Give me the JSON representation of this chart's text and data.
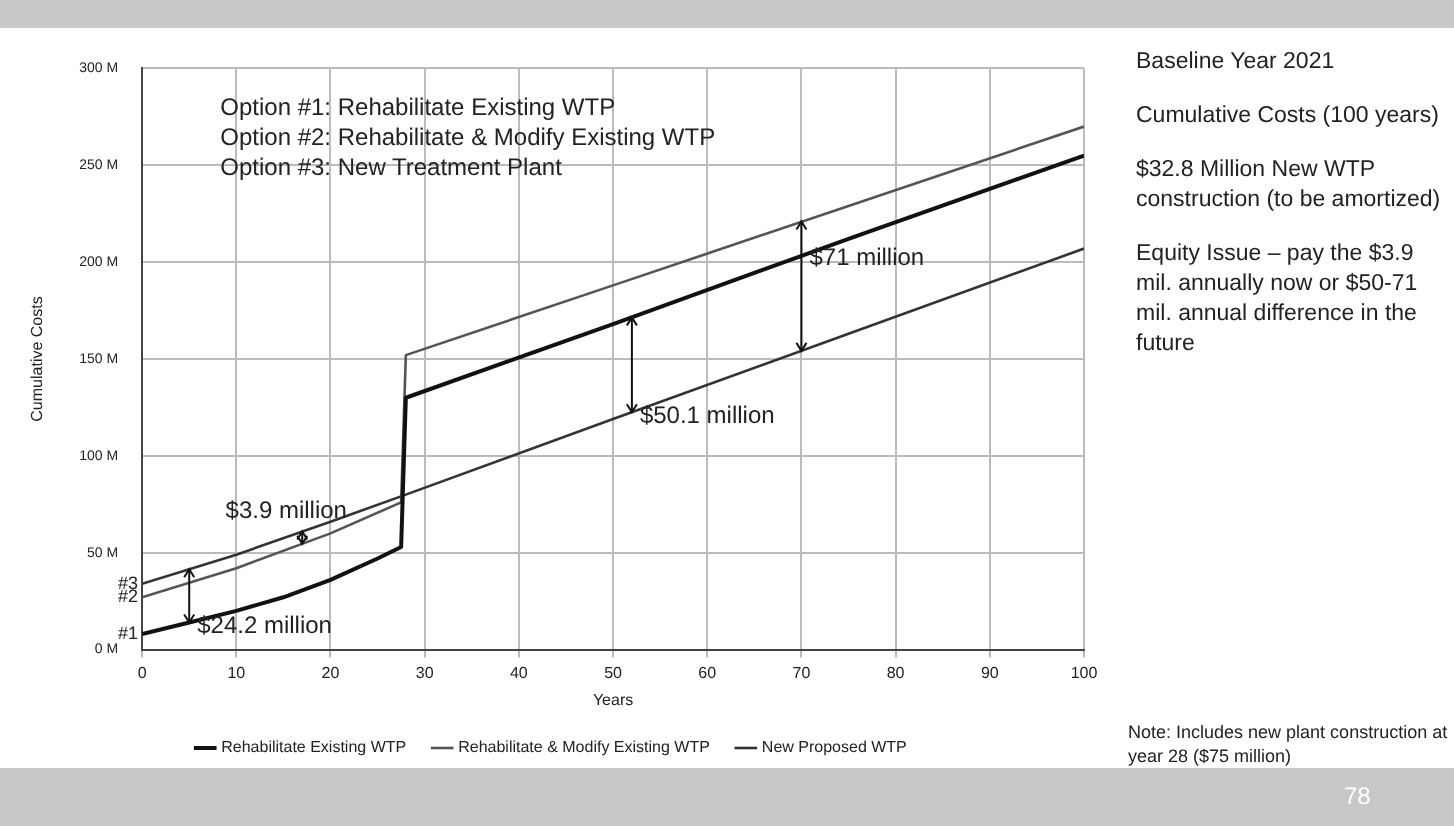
{
  "chart_data": {
    "type": "line",
    "xlabel": "Years",
    "ylabel": "Cumulative Costs",
    "xlim": [
      0,
      100
    ],
    "xticks": [
      0,
      10,
      20,
      30,
      40,
      50,
      60,
      70,
      80,
      90,
      100
    ],
    "ylim": [
      0,
      300
    ],
    "yticks": [
      {
        "value": 0,
        "label": "0 M"
      },
      {
        "value": 50,
        "label": "50 M"
      },
      {
        "value": 100,
        "label": "100 M"
      },
      {
        "value": 150,
        "label": "150 M"
      },
      {
        "value": 200,
        "label": "200 M"
      },
      {
        "value": 250,
        "label": "250 M"
      },
      {
        "value": 300,
        "label": "300 M"
      }
    ],
    "grid": true,
    "legend": "bottom",
    "marker": "none",
    "line_style": "solid",
    "series": [
      {
        "name": "Rehabilitate Existing WTP",
        "color": "#111111",
        "x": [
          0,
          5,
          10,
          15,
          20,
          25,
          27.5,
          28,
          50,
          75,
          100
        ],
        "values": [
          8,
          14,
          20,
          27,
          36,
          47,
          53,
          130,
          168,
          212,
          255
        ]
      },
      {
        "name": "Rehabilitate & Modify Existing WTP",
        "color": "#555555",
        "x": [
          0,
          10,
          20,
          27.5,
          28,
          50,
          75,
          100
        ],
        "values": [
          27,
          42,
          60,
          76,
          152,
          188,
          229,
          270
        ]
      },
      {
        "name": "New Proposed WTP",
        "color": "#333333",
        "x": [
          0,
          10,
          20,
          28,
          50,
          75,
          100
        ],
        "values": [
          34,
          49,
          66,
          80,
          119,
          163,
          207
        ]
      }
    ],
    "annotations": [
      "Option #1: Rehabilitate Existing WTP",
      "Option #2: Rehabilitate & Modify Existing WTP",
      "Option #3: New Treatment Plant",
      "Baseline Year 2021",
      "Cumulative Costs (100 years)",
      "$32.8 Million New WTP construction (to be amortized)",
      "Equity Issue – pay the $3.9 mil. annually now or $50-71 mil. annual difference in the future",
      "Note: Includes new plant construction at year 28 ($75 million)",
      "78",
      {
        "text": "#3",
        "x": 0,
        "y": 34
      },
      {
        "text": "#2",
        "x": 0,
        "y": 27
      },
      {
        "text": "#1",
        "x": 0,
        "y": 8
      },
      {
        "text": "$3.9 million",
        "x": 17,
        "y": 61
      },
      {
        "text": "$24.2 million",
        "x": 5,
        "y": 41.5
      },
      {
        "text": "$50.1 million",
        "x": 52,
        "y": 171.5
      },
      {
        "text": "$71 million",
        "x": 70,
        "y": 221
      }
    ]
  }
}
